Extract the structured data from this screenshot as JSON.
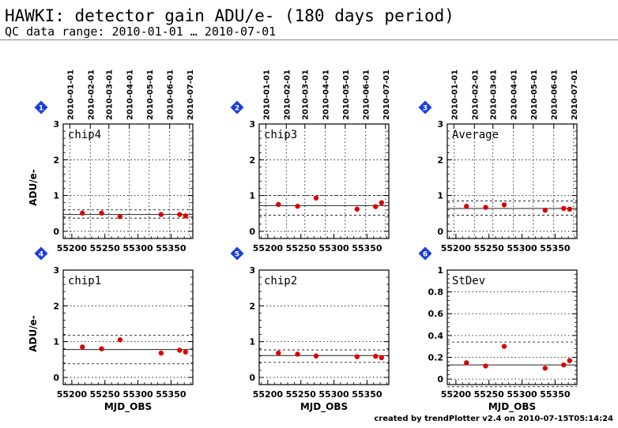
{
  "header": {
    "title": "HAWKI: detector gain ADU/e- (180 days period)",
    "subtitle": "QC data range: 2010-01-01 … 2010-07-01"
  },
  "footer": {
    "credit": "created by trendPlotter v2.4 on 2010-07-15T05:14:24"
  },
  "colors": {
    "point": "#dd0000",
    "marker": "#1a3de0",
    "axis": "#000000"
  },
  "chart_data": [
    {
      "type": "scatter",
      "panel": "1",
      "label": "chip4",
      "ylabel": "ADU/e-",
      "xlabel": "",
      "xlim": [
        55187,
        55383
      ],
      "ylim": [
        -0.2,
        3
      ],
      "yticks": [
        0,
        1,
        2,
        3
      ],
      "yticklabels": [
        "0",
        "1",
        "2",
        "3"
      ],
      "xticks": [
        55200,
        55250,
        55300,
        55350
      ],
      "date_ticks": [
        "2010-01-01",
        "2010-02-01",
        "2010-03-01",
        "2010-04-01",
        "2010-05-01",
        "2010-06-01",
        "2010-07-01"
      ],
      "date_mjd": [
        55197,
        55228,
        55256,
        55287,
        55317,
        55348,
        55378
      ],
      "x": [
        55216,
        55245,
        55273,
        55335,
        55363,
        55372
      ],
      "y": [
        0.51,
        0.51,
        0.41,
        0.47,
        0.47,
        0.43
      ],
      "mean": 0.47,
      "band": [
        0.37,
        0.6
      ]
    },
    {
      "type": "scatter",
      "panel": "2",
      "label": "chip3",
      "ylabel": "",
      "xlabel": "",
      "xlim": [
        55187,
        55383
      ],
      "ylim": [
        -0.2,
        3
      ],
      "yticks": [
        0,
        1,
        2,
        3
      ],
      "yticklabels": [
        "0",
        "1",
        "2",
        "3"
      ],
      "xticks": [
        55200,
        55250,
        55300,
        55350
      ],
      "date_ticks": [
        "2010-01-01",
        "2010-02-01",
        "2010-03-01",
        "2010-04-01",
        "2010-05-01",
        "2010-06-01",
        "2010-07-01"
      ],
      "date_mjd": [
        55197,
        55228,
        55256,
        55287,
        55317,
        55348,
        55378
      ],
      "x": [
        55216,
        55245,
        55273,
        55335,
        55363,
        55372
      ],
      "y": [
        0.75,
        0.7,
        0.93,
        0.62,
        0.69,
        0.8
      ],
      "mean": 0.72,
      "band": [
        0.45,
        1.0
      ]
    },
    {
      "type": "scatter",
      "panel": "3",
      "label": "Average",
      "ylabel": "",
      "xlabel": "",
      "xlim": [
        55187,
        55383
      ],
      "ylim": [
        -0.2,
        3
      ],
      "yticks": [
        0,
        1,
        2,
        3
      ],
      "yticklabels": [
        "0",
        "1",
        "2",
        "3"
      ],
      "xticks": [
        55200,
        55250,
        55300,
        55350
      ],
      "date_ticks": [
        "2010-01-01",
        "2010-02-01",
        "2010-03-01",
        "2010-04-01",
        "2010-05-01",
        "2010-06-01",
        "2010-07-01"
      ],
      "date_mjd": [
        55197,
        55228,
        55256,
        55287,
        55317,
        55348,
        55378
      ],
      "x": [
        55216,
        55245,
        55273,
        55335,
        55363,
        55372
      ],
      "y": [
        0.7,
        0.67,
        0.74,
        0.59,
        0.64,
        0.62
      ],
      "mean": 0.64,
      "band": [
        0.45,
        0.85
      ]
    },
    {
      "type": "scatter",
      "panel": "4",
      "label": "chip1",
      "ylabel": "ADU/e-",
      "xlabel": "MJD_OBS",
      "xlim": [
        55187,
        55383
      ],
      "ylim": [
        -0.2,
        3
      ],
      "yticks": [
        0,
        1,
        2,
        3
      ],
      "yticklabels": [
        "0",
        "1",
        "2",
        "3"
      ],
      "xticks": [
        55200,
        55250,
        55300,
        55350
      ],
      "date_ticks": [],
      "date_mjd": [],
      "x": [
        55216,
        55245,
        55273,
        55335,
        55363,
        55372
      ],
      "y": [
        0.85,
        0.8,
        1.05,
        0.68,
        0.76,
        0.71
      ],
      "mean": 0.78,
      "band": [
        0.38,
        1.18
      ]
    },
    {
      "type": "scatter",
      "panel": "5",
      "label": "chip2",
      "ylabel": "",
      "xlabel": "MJD_OBS",
      "xlim": [
        55187,
        55383
      ],
      "ylim": [
        -0.2,
        3
      ],
      "yticks": [
        0,
        1,
        2,
        3
      ],
      "yticklabels": [
        "0",
        "1",
        "2",
        "3"
      ],
      "xticks": [
        55200,
        55250,
        55300,
        55350
      ],
      "date_ticks": [],
      "date_mjd": [],
      "x": [
        55216,
        55245,
        55273,
        55335,
        55363,
        55372
      ],
      "y": [
        0.68,
        0.65,
        0.6,
        0.58,
        0.59,
        0.55
      ],
      "mean": 0.61,
      "band": [
        0.42,
        0.77
      ]
    },
    {
      "type": "scatter",
      "panel": "6",
      "label": "StDev",
      "ylabel": "",
      "xlabel": "MJD_OBS",
      "xlim": [
        55187,
        55383
      ],
      "ylim": [
        -0.05,
        1
      ],
      "yticks": [
        0,
        0.2,
        0.4,
        0.6,
        0.8,
        1
      ],
      "yticklabels": [
        "0",
        "0.2",
        "0.4",
        "0.6",
        "0.8",
        "1"
      ],
      "xticks": [
        55200,
        55250,
        55300,
        55350
      ],
      "date_ticks": [],
      "date_mjd": [],
      "x": [
        55216,
        55245,
        55273,
        55335,
        55363,
        55372
      ],
      "y": [
        0.15,
        0.12,
        0.3,
        0.1,
        0.13,
        0.17
      ],
      "mean": 0.13,
      "band": [
        -0.07,
        0.34
      ]
    }
  ]
}
